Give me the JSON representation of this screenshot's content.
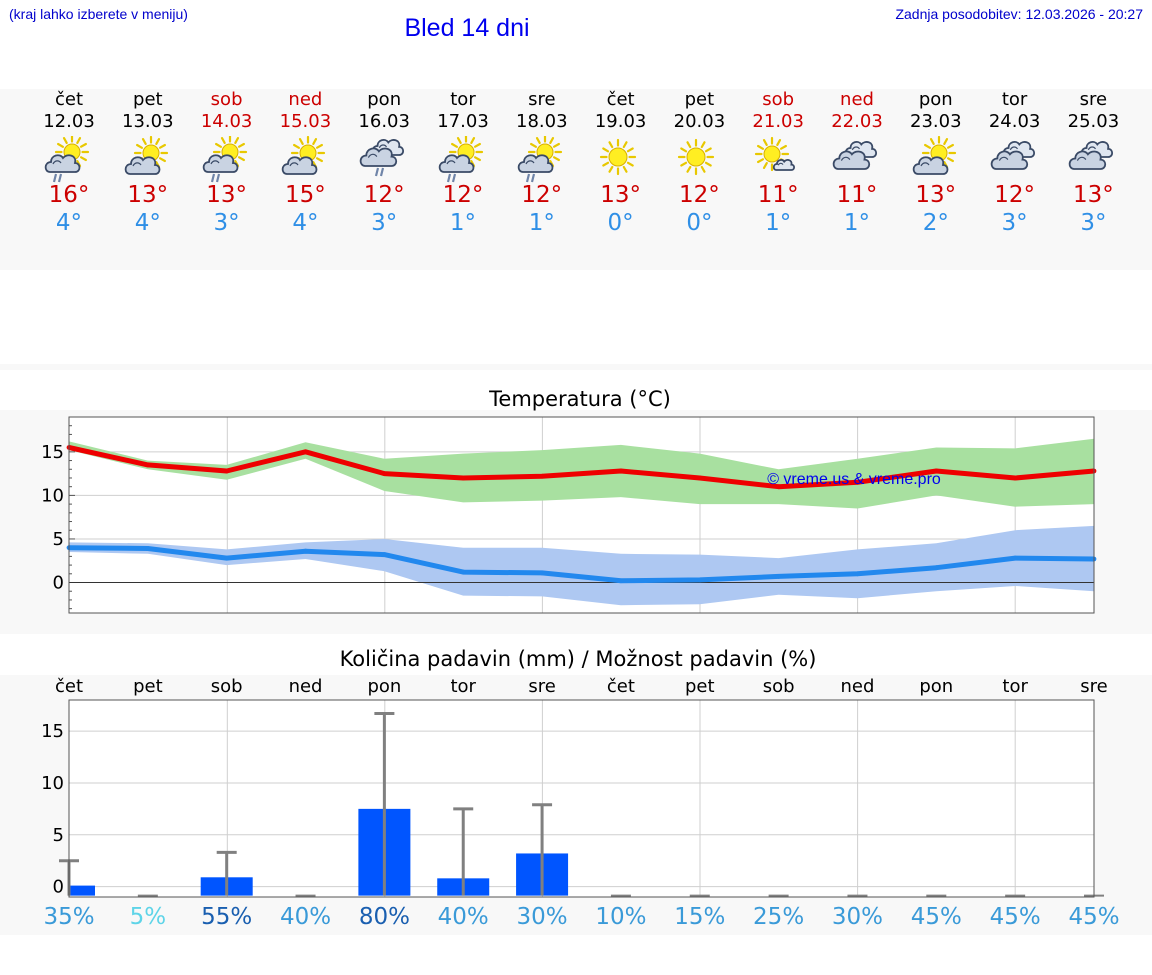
{
  "header": {
    "location_hint": "(kraj lahko izberete v meniju)",
    "title": "Bled 14 dni",
    "last_update": "Zadnja posodobitev: 12.03.2026 - 20:27"
  },
  "days": [
    {
      "name": "čet",
      "date": "12.03",
      "weekend": false,
      "icon": "sun-cloud-rain-icon",
      "tmax": "16°",
      "tmin": "4°",
      "prob": "35%"
    },
    {
      "name": "pet",
      "date": "13.03",
      "weekend": false,
      "icon": "sun-cloud-icon",
      "tmax": "13°",
      "tmin": "4°",
      "prob": "5%"
    },
    {
      "name": "sob",
      "date": "14.03",
      "weekend": true,
      "icon": "sun-cloud-rain-icon",
      "tmax": "13°",
      "tmin": "3°",
      "prob": "55%"
    },
    {
      "name": "ned",
      "date": "15.03",
      "weekend": true,
      "icon": "sun-cloud-icon",
      "tmax": "15°",
      "tmin": "4°",
      "prob": "40%"
    },
    {
      "name": "pon",
      "date": "16.03",
      "weekend": false,
      "icon": "cloud-rain-icon",
      "tmax": "12°",
      "tmin": "3°",
      "prob": "80%"
    },
    {
      "name": "tor",
      "date": "17.03",
      "weekend": false,
      "icon": "sun-cloud-rain-icon",
      "tmax": "12°",
      "tmin": "1°",
      "prob": "40%"
    },
    {
      "name": "sre",
      "date": "18.03",
      "weekend": false,
      "icon": "sun-cloud-rain-icon",
      "tmax": "12°",
      "tmin": "1°",
      "prob": "30%"
    },
    {
      "name": "čet",
      "date": "19.03",
      "weekend": false,
      "icon": "sun-icon",
      "tmax": "13°",
      "tmin": "0°",
      "prob": "10%"
    },
    {
      "name": "pet",
      "date": "20.03",
      "weekend": false,
      "icon": "sun-icon",
      "tmax": "12°",
      "tmin": "0°",
      "prob": "15%"
    },
    {
      "name": "sob",
      "date": "21.03",
      "weekend": true,
      "icon": "sun-small-cloud-icon",
      "tmax": "11°",
      "tmin": "1°",
      "prob": "25%"
    },
    {
      "name": "ned",
      "date": "22.03",
      "weekend": true,
      "icon": "cloud-icon",
      "tmax": "11°",
      "tmin": "1°",
      "prob": "30%"
    },
    {
      "name": "pon",
      "date": "23.03",
      "weekend": false,
      "icon": "sun-cloud-icon",
      "tmax": "13°",
      "tmin": "2°",
      "prob": "45%"
    },
    {
      "name": "tor",
      "date": "24.03",
      "weekend": false,
      "icon": "cloud-icon",
      "tmax": "12°",
      "tmin": "3°",
      "prob": "45%"
    },
    {
      "name": "sre",
      "date": "25.03",
      "weekend": false,
      "icon": "cloud-icon",
      "tmax": "13°",
      "tmin": "3°",
      "prob": "45%"
    }
  ],
  "chart_data": [
    {
      "type": "line",
      "title": "Temperatura (°C)",
      "watermark": "© vreme.us & vreme.pro",
      "ylim": [
        -3.5,
        19
      ],
      "yticks": [
        0,
        5,
        10,
        15
      ],
      "series": [
        {
          "name": "max",
          "color": "#ee0000",
          "values": [
            15.5,
            13.5,
            12.8,
            15.0,
            12.5,
            12.0,
            12.2,
            12.8,
            12.0,
            11.0,
            11.5,
            12.8,
            12.0,
            12.8
          ],
          "band_low": [
            15.2,
            13.0,
            11.8,
            14.2,
            10.5,
            9.2,
            9.4,
            9.8,
            9.0,
            9.0,
            8.5,
            10.0,
            8.7,
            9.0
          ],
          "band_high": [
            16.2,
            14.0,
            13.5,
            16.1,
            14.2,
            14.8,
            15.2,
            15.8,
            14.8,
            13.0,
            14.2,
            15.5,
            15.4,
            16.5
          ],
          "band_color": "#a8e0a0"
        },
        {
          "name": "min",
          "color": "#2288ee",
          "values": [
            4.0,
            3.9,
            2.8,
            3.6,
            3.2,
            1.2,
            1.1,
            0.2,
            0.3,
            0.7,
            1.0,
            1.7,
            2.8,
            2.7
          ],
          "band_low": [
            3.5,
            3.3,
            2.0,
            2.7,
            1.3,
            -1.5,
            -1.6,
            -2.6,
            -2.5,
            -1.4,
            -1.8,
            -1.0,
            -0.4,
            -1.0
          ],
          "band_high": [
            4.6,
            4.5,
            3.8,
            4.6,
            5.0,
            4.0,
            4.0,
            3.3,
            3.2,
            2.8,
            3.8,
            4.5,
            6.0,
            6.5
          ],
          "band_color": "#aec8f2"
        }
      ]
    },
    {
      "type": "bar",
      "title": "Količina padavin (mm) / Možnost padavin (%)",
      "ylim": [
        -1,
        18
      ],
      "yticks": [
        0,
        5,
        10,
        15
      ],
      "categories": [
        "čet",
        "pet",
        "sob",
        "ned",
        "pon",
        "tor",
        "sre",
        "čet",
        "pet",
        "sob",
        "ned",
        "pon",
        "tor",
        "sre"
      ],
      "values": [
        0.1,
        0,
        0.9,
        0,
        7.5,
        0.8,
        3.2,
        0,
        0,
        0,
        0,
        0,
        0,
        0
      ],
      "error_high": [
        2.5,
        0,
        3.3,
        0,
        16.7,
        7.5,
        7.9,
        0,
        0,
        0,
        0,
        0,
        0,
        0
      ],
      "bar_color": "#0055ff",
      "error_color": "#808080",
      "probabilities": [
        "35%",
        "5%",
        "55%",
        "40%",
        "80%",
        "40%",
        "30%",
        "10%",
        "15%",
        "25%",
        "30%",
        "45%",
        "45%",
        "45%"
      ],
      "probability_colors": [
        "#3a9ad8",
        "#5ed4e8",
        "#1a5fb0",
        "#3a9ad8",
        "#1a5fb0",
        "#3a9ad8",
        "#3a9ad8",
        "#3a9ad8",
        "#3a9ad8",
        "#3a9ad8",
        "#3a9ad8",
        "#3a9ad8",
        "#3a9ad8",
        "#3a9ad8"
      ]
    }
  ]
}
